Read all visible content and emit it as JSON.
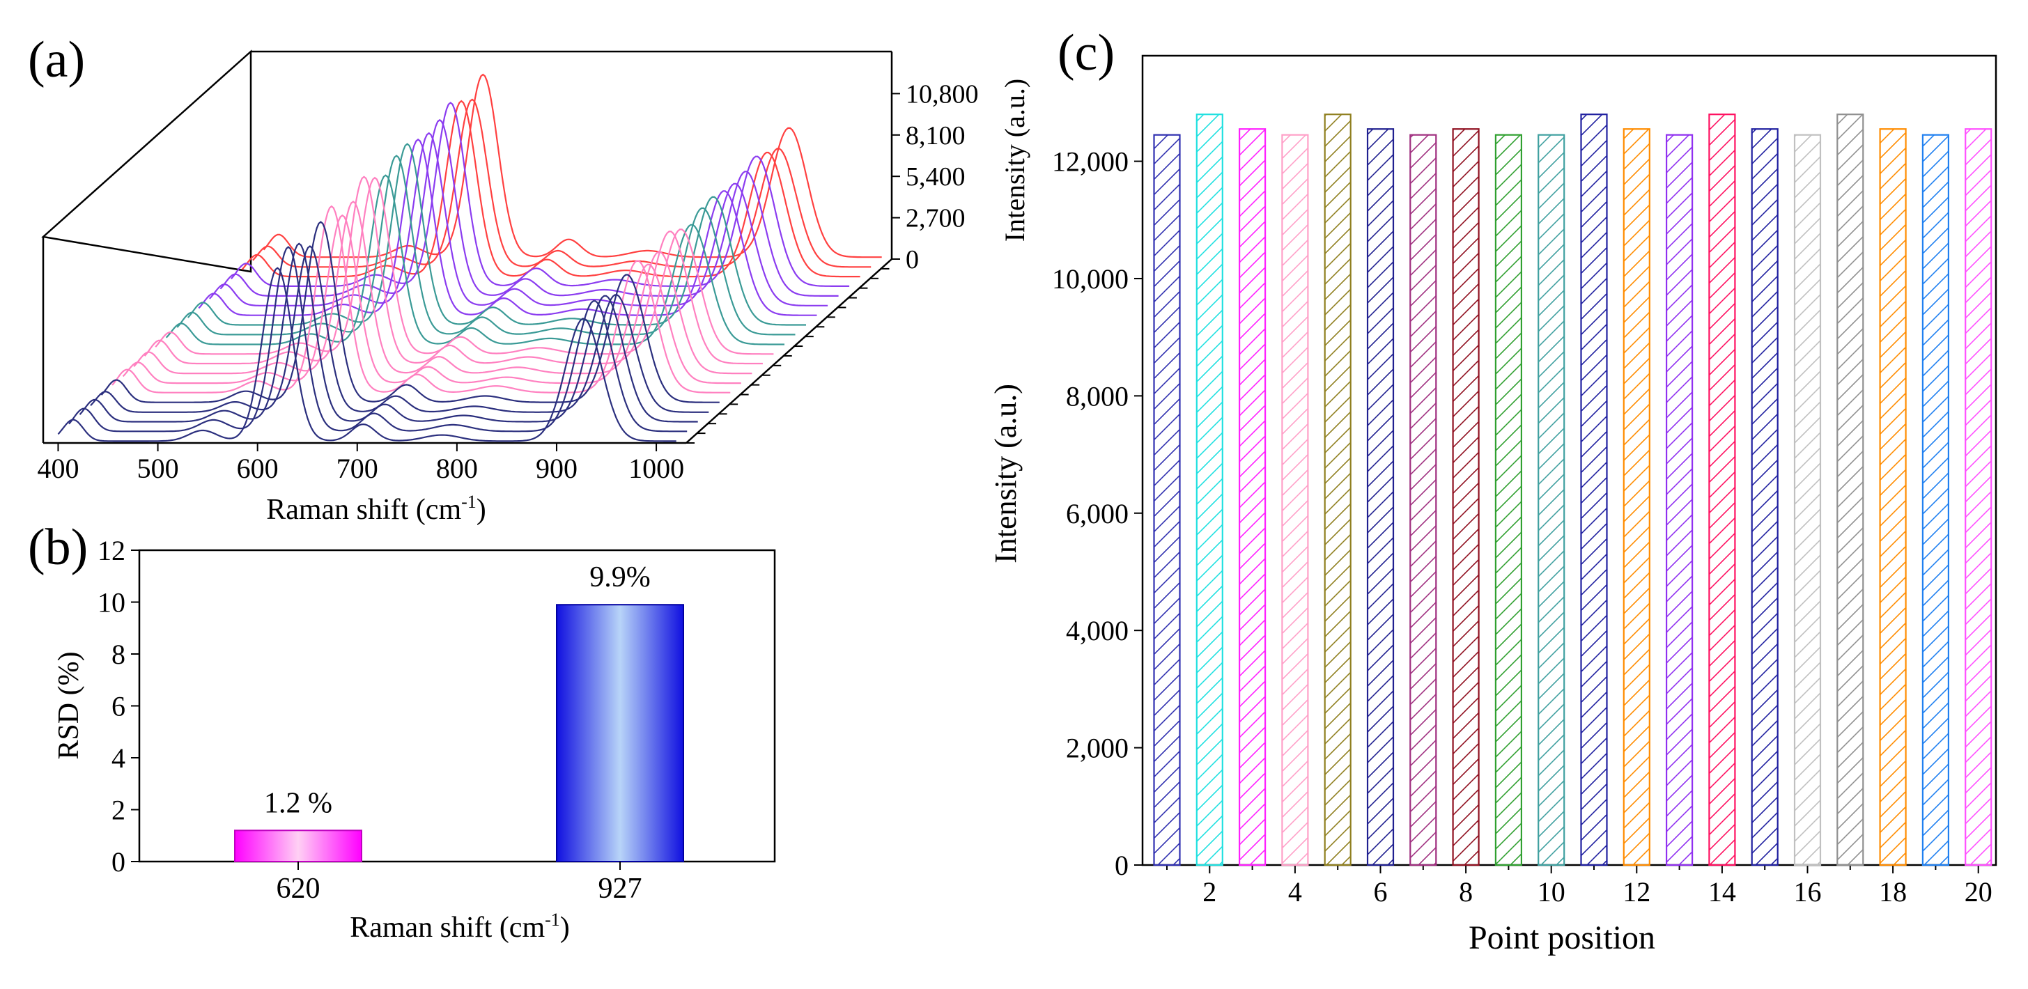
{
  "panel_labels": {
    "a": "(a)",
    "b": "(b)",
    "c": "(c)"
  },
  "chart_data": [
    {
      "panel": "a",
      "type": "line",
      "title": "",
      "xlabel": "Raman shift (cm",
      "xlabel_sup": "-1",
      "xlabel_end": ")",
      "xlim": [
        385,
        1030
      ],
      "x_ticks": [
        "400",
        "500",
        "600",
        "700",
        "800",
        "900",
        "1000"
      ],
      "x_tick_values": [
        400,
        500,
        600,
        700,
        800,
        900,
        1000
      ],
      "zlim": [
        0,
        13500
      ],
      "z_ticks": [
        "0",
        "2,700",
        "5,400",
        "8,100",
        "10,800"
      ],
      "z_tick_values": [
        0,
        2700,
        5400,
        8100,
        10800
      ],
      "n_spectra": 20,
      "series_colors": [
        "#2b2f7e",
        "#2b2f7e",
        "#2b2f7e",
        "#2b2f7e",
        "#2b2f7e",
        "#ff80c0",
        "#ff80c0",
        "#ff80c0",
        "#ff80c0",
        "#ff80c0",
        "#3a9a96",
        "#3a9a96",
        "#3a9a96",
        "#8b3cf0",
        "#8b3cf0",
        "#8b3cf0",
        "#8b3cf0",
        "#ff4040",
        "#ff4040",
        "#ff4040"
      ],
      "peaks": [
        {
          "position": 415,
          "intensity": 1400,
          "width": 10
        },
        {
          "position": 545,
          "intensity": 700,
          "width": 14
        },
        {
          "position": 620,
          "intensity": 11300,
          "width": 15
        },
        {
          "position": 706,
          "intensity": 1100,
          "width": 12
        },
        {
          "position": 785,
          "intensity": 400,
          "width": 18
        },
        {
          "position": 927,
          "intensity": 8000,
          "width": 18
        }
      ]
    },
    {
      "panel": "b",
      "type": "bar",
      "title": "",
      "xlabel": "Raman shift (cm",
      "xlabel_sup": "-1",
      "xlabel_end": ")",
      "ylabel": "RSD (%)",
      "ylim": [
        0,
        12
      ],
      "y_ticks": [
        "0",
        "2",
        "4",
        "6",
        "8",
        "10",
        "12"
      ],
      "y_tick_values": [
        0,
        2,
        4,
        6,
        8,
        10,
        12
      ],
      "categories": [
        "620",
        "927"
      ],
      "values": [
        1.2,
        9.9
      ],
      "data_labels": [
        "1.2 %",
        "9.9%"
      ],
      "colors": [
        "#ff00ff",
        "#1010e0"
      ]
    },
    {
      "panel": "c",
      "type": "bar",
      "title": "",
      "xlabel": "Point position",
      "ylabel": "Intensity (a.u.)",
      "ylabel_duplicate": "Intensity (a.u.)",
      "ylim": [
        0,
        13800
      ],
      "y_ticks": [
        "0",
        "2,000",
        "4,000",
        "6,000",
        "8,000",
        "10,000",
        "12,000"
      ],
      "y_tick_values": [
        0,
        2000,
        4000,
        6000,
        8000,
        10000,
        12000
      ],
      "x_ticks": [
        "2",
        "4",
        "6",
        "8",
        "10",
        "12",
        "14",
        "16",
        "18",
        "20"
      ],
      "x_tick_values": [
        2,
        4,
        6,
        8,
        10,
        12,
        14,
        16,
        18,
        20
      ],
      "x": [
        1,
        2,
        3,
        4,
        5,
        6,
        7,
        8,
        9,
        10,
        11,
        12,
        13,
        14,
        15,
        16,
        17,
        18,
        19,
        20
      ],
      "values": [
        12450,
        12800,
        12550,
        12450,
        12800,
        12550,
        12450,
        12550,
        12450,
        12450,
        12800,
        12550,
        12450,
        12800,
        12550,
        12450,
        12800,
        12550,
        12450,
        12550
      ],
      "colors": [
        "#3030b0",
        "#20e0e0",
        "#ff20ff",
        "#ffa0c8",
        "#908020",
        "#202090",
        "#a03080",
        "#901020",
        "#30a030",
        "#40a0a0",
        "#2020a0",
        "#ff8c00",
        "#9030f0",
        "#ff1060",
        "#2020a0",
        "#c0c0c0",
        "#909090",
        "#ff8c00",
        "#2080f0",
        "#ff50ff"
      ],
      "pattern": "hatched"
    }
  ]
}
